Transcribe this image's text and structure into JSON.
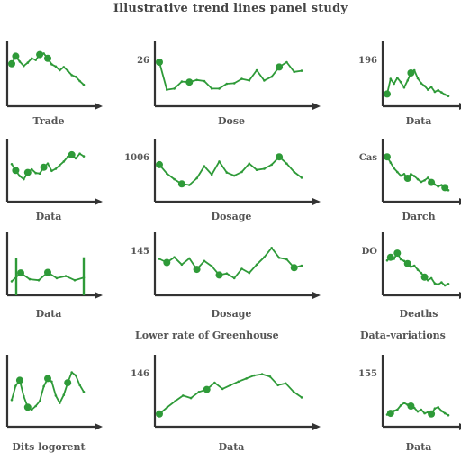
{
  "page": {
    "title": "Illustrative trend lines panel study",
    "row_captions": [
      "Lower rate of Greenhouse",
      "Data-variations"
    ],
    "accent": "#2e9a38",
    "axis_color": "#333333"
  },
  "chart_data": [
    {
      "type": "line",
      "title": "",
      "xlabel": "Trade",
      "ylabel": "",
      "ytick": "",
      "xlim": [
        0,
        20
      ],
      "ylim": [
        0,
        10
      ],
      "series": [
        {
          "color": "#2e9a38",
          "x": [
            0,
            1,
            2,
            3,
            4,
            5,
            6,
            7,
            8,
            9,
            10,
            11,
            12,
            13,
            14,
            15,
            16,
            17,
            18
          ],
          "y": [
            7.2,
            8.6,
            7.6,
            6.8,
            7.4,
            8.2,
            7.9,
            8.9,
            9.1,
            8.2,
            7.1,
            6.7,
            6.0,
            6.6,
            5.9,
            5.1,
            4.8,
            4.0,
            3.3
          ]
        }
      ],
      "points": [
        0,
        1,
        7,
        9
      ]
    },
    {
      "type": "line",
      "title": "",
      "xlabel": "Dose",
      "ylabel": "",
      "ytick": "26",
      "xlim": [
        0,
        20
      ],
      "ylim": [
        0,
        10
      ],
      "series": [
        {
          "color": "#2e9a38",
          "x": [
            0,
            1,
            2,
            3,
            4,
            5,
            6,
            7,
            8,
            9,
            10,
            11,
            12,
            13,
            14,
            15,
            16,
            17,
            18,
            19
          ],
          "y": [
            7.5,
            2.4,
            2.6,
            3.9,
            3.8,
            4.2,
            4.0,
            2.6,
            2.6,
            3.5,
            3.6,
            4.4,
            4.1,
            6.0,
            4.1,
            4.8,
            6.6,
            7.5,
            5.7,
            5.9
          ]
        }
      ],
      "points": [
        0,
        4,
        16
      ]
    },
    {
      "type": "line",
      "title": "",
      "xlabel": "Data",
      "ylabel": "",
      "ytick": "196",
      "xlim": [
        0,
        20
      ],
      "ylim": [
        0,
        10
      ],
      "series": [
        {
          "color": "#2e9a38",
          "x": [
            0,
            1,
            2,
            3,
            4,
            5,
            6,
            7,
            8,
            9,
            10,
            11,
            12,
            13,
            14,
            15,
            16,
            17,
            18
          ],
          "y": [
            1.6,
            4.4,
            3.5,
            4.6,
            3.8,
            2.8,
            4.1,
            5.5,
            6.0,
            4.5,
            3.6,
            3.1,
            2.4,
            2.9,
            2.0,
            2.3,
            1.9,
            1.5,
            1.2
          ]
        }
      ],
      "points": [
        0,
        7
      ]
    },
    {
      "type": "line",
      "title": "",
      "xlabel": "Data",
      "ylabel": "",
      "ytick": "",
      "xlim": [
        0,
        20
      ],
      "ylim": [
        0,
        10
      ],
      "series": [
        {
          "color": "#2e9a38",
          "x": [
            0,
            1,
            2,
            3,
            4,
            5,
            6,
            7,
            8,
            9,
            10,
            11,
            12,
            13,
            14,
            15,
            16,
            17,
            18
          ],
          "y": [
            6.5,
            5.3,
            4.2,
            3.6,
            4.9,
            5.5,
            4.8,
            4.7,
            5.9,
            6.6,
            5.2,
            5.6,
            6.3,
            7.0,
            7.9,
            8.3,
            7.6,
            8.5,
            8.0
          ]
        }
      ],
      "points": [
        1,
        4,
        8,
        15
      ]
    },
    {
      "type": "line",
      "title": "",
      "xlabel": "Dosage",
      "ylabel": "",
      "ytick": "1006",
      "xlim": [
        0,
        20
      ],
      "ylim": [
        0,
        10
      ],
      "series": [
        {
          "color": "#2e9a38",
          "x": [
            0,
            1,
            2,
            3,
            4,
            5,
            6,
            7,
            8,
            9,
            10,
            11,
            12,
            13,
            14,
            15,
            16,
            17,
            18,
            19
          ],
          "y": [
            6.4,
            4.7,
            3.6,
            2.7,
            2.5,
            3.8,
            6.1,
            4.5,
            7.0,
            4.9,
            4.3,
            5.0,
            6.6,
            5.4,
            5.6,
            6.4,
            7.9,
            6.6,
            5.0,
            3.9
          ]
        }
      ],
      "points": [
        0,
        3,
        16
      ]
    },
    {
      "type": "line",
      "title": "",
      "xlabel": "Darch",
      "ylabel": "",
      "ytick": "Cas",
      "xlim": [
        0,
        20
      ],
      "ylim": [
        0,
        10
      ],
      "series": [
        {
          "color": "#2e9a38",
          "x": [
            0,
            1,
            2,
            3,
            4,
            5,
            6,
            7,
            8,
            9,
            10,
            11,
            12,
            13,
            14,
            15,
            16,
            17,
            18
          ],
          "y": [
            7.9,
            6.8,
            5.7,
            5.0,
            4.3,
            4.6,
            3.8,
            4.6,
            4.2,
            3.6,
            3.1,
            3.4,
            3.9,
            3.0,
            2.6,
            2.2,
            2.5,
            2.0,
            1.5
          ]
        }
      ],
      "points": [
        0,
        6,
        13,
        17
      ]
    },
    {
      "type": "line",
      "title": "",
      "xlabel": "Data",
      "ylabel": "",
      "ytick": "",
      "xlim": [
        0,
        20
      ],
      "ylim": [
        0,
        10
      ],
      "series": [
        {
          "color": "#2e9a38",
          "x": [
            0,
            1,
            2,
            3,
            4,
            5,
            6,
            7,
            8
          ],
          "y": [
            2.0,
            3.6,
            2.4,
            2.2,
            3.7,
            2.6,
            3.0,
            2.2,
            2.7
          ]
        }
      ],
      "points": [
        1,
        4
      ],
      "bars": [
        {
          "x": 0.5,
          "h": 6.5
        },
        {
          "x": 8.0,
          "h": 6.6
        }
      ]
    },
    {
      "type": "line",
      "title": "",
      "xlabel": "Dosage",
      "ylabel": "",
      "ytick": "145",
      "xlim": [
        0,
        20
      ],
      "ylim": [
        0,
        10
      ],
      "series": [
        {
          "color": "#2e9a38",
          "x": [
            0,
            1,
            2,
            3,
            4,
            5,
            6,
            7,
            8,
            9,
            10,
            11,
            12,
            13,
            14,
            15,
            16,
            17,
            18,
            19
          ],
          "y": [
            6.3,
            5.6,
            6.6,
            5.2,
            6.4,
            4.3,
            5.9,
            4.9,
            3.2,
            3.5,
            2.6,
            4.4,
            3.6,
            5.2,
            6.6,
            8.4,
            6.5,
            6.2,
            4.6,
            5.0
          ]
        }
      ],
      "points": [
        1,
        5,
        8,
        18
      ]
    },
    {
      "type": "line",
      "title": "",
      "xlabel": "Deaths",
      "ylabel": "",
      "ytick": "DO",
      "xlim": [
        0,
        20
      ],
      "ylim": [
        0,
        10
      ],
      "series": [
        {
          "color": "#2e9a38",
          "x": [
            0,
            1,
            2,
            3,
            4,
            5,
            6,
            7,
            8,
            9,
            10,
            11,
            12,
            13,
            14,
            15,
            16,
            17,
            18
          ],
          "y": [
            6.0,
            6.6,
            6.3,
            7.4,
            6.2,
            5.9,
            5.4,
            4.8,
            5.0,
            4.2,
            3.6,
            2.8,
            2.2,
            2.6,
            1.6,
            1.4,
            1.8,
            1.2,
            1.5
          ]
        }
      ],
      "points": [
        1,
        3,
        6,
        11
      ]
    },
    {
      "type": "line",
      "title": "",
      "xlabel": "Dits logorent",
      "ylabel": "",
      "ytick": "",
      "xlim": [
        0,
        20
      ],
      "ylim": [
        0,
        10
      ],
      "series": [
        {
          "color": "#2e9a38",
          "x": [
            0,
            1,
            2,
            3,
            4,
            5,
            6,
            7,
            8,
            9,
            10,
            11,
            12,
            13,
            14,
            15,
            16,
            17,
            18
          ],
          "y": [
            3.8,
            6.1,
            7.0,
            4.4,
            2.6,
            2.2,
            2.8,
            3.6,
            6.0,
            7.3,
            6.8,
            4.5,
            3.3,
            4.6,
            6.6,
            8.3,
            7.8,
            6.2,
            5.1
          ]
        }
      ],
      "points": [
        2,
        4,
        9,
        14
      ]
    },
    {
      "type": "line",
      "title": "",
      "xlabel": "Data",
      "ylabel": "",
      "ytick": "146",
      "xlim": [
        0,
        20
      ],
      "ylim": [
        0,
        10
      ],
      "series": [
        {
          "color": "#2e9a38",
          "x": [
            0,
            1,
            2,
            3,
            4,
            5,
            6,
            7,
            8,
            9,
            10,
            11,
            12,
            13,
            14,
            15,
            16,
            17,
            18
          ],
          "y": [
            1.5,
            2.6,
            3.6,
            4.5,
            4.1,
            5.1,
            5.5,
            6.6,
            5.6,
            6.2,
            6.8,
            7.3,
            7.8,
            8.0,
            7.6,
            6.2,
            6.5,
            5.1,
            4.2
          ]
        }
      ],
      "points": [
        0,
        6
      ]
    },
    {
      "type": "line",
      "title": "",
      "xlabel": "Data",
      "ylabel": "",
      "ytick": "155",
      "xlim": [
        0,
        20
      ],
      "ylim": [
        0,
        10
      ],
      "series": [
        {
          "color": "#2e9a38",
          "x": [
            0,
            1,
            2,
            3,
            4,
            5,
            6,
            7,
            8,
            9,
            10,
            11,
            12,
            13,
            14,
            15,
            16,
            17,
            18
          ],
          "y": [
            1.4,
            1.6,
            2.0,
            2.2,
            2.9,
            3.3,
            3.0,
            2.8,
            2.5,
            1.9,
            2.2,
            1.6,
            1.8,
            1.5,
            2.4,
            2.6,
            2.0,
            1.6,
            1.3
          ]
        }
      ],
      "points": [
        1,
        7,
        13
      ]
    }
  ]
}
